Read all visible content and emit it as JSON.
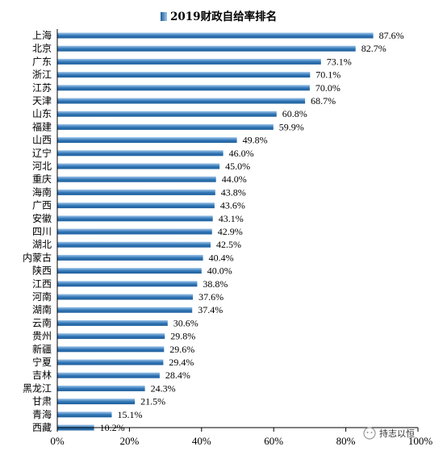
{
  "chart_data": {
    "type": "bar",
    "orientation": "horizontal",
    "title": "2019财政自给率排名",
    "categories": [
      "上海",
      "北京",
      "广东",
      "浙江",
      "江苏",
      "天津",
      "山东",
      "福建",
      "山西",
      "辽宁",
      "河北",
      "重庆",
      "海南",
      "广西",
      "安徽",
      "四川",
      "湖北",
      "内蒙古",
      "陕西",
      "江西",
      "河南",
      "湖南",
      "云南",
      "贵州",
      "新疆",
      "宁夏",
      "吉林",
      "黑龙江",
      "甘肃",
      "青海",
      "西藏"
    ],
    "values": [
      87.6,
      82.7,
      73.1,
      70.1,
      70.0,
      68.7,
      60.8,
      59.9,
      49.8,
      46.0,
      45.0,
      44.0,
      43.8,
      43.6,
      43.1,
      42.9,
      42.5,
      40.4,
      40.0,
      38.8,
      37.6,
      37.4,
      30.6,
      29.8,
      29.6,
      29.4,
      28.4,
      24.3,
      21.5,
      15.1,
      10.2
    ],
    "value_labels": [
      "87.6%",
      "82.7%",
      "73.1%",
      "70.1%",
      "70.0%",
      "68.7%",
      "60.8%",
      "59.9%",
      "49.8%",
      "46.0%",
      "45.0%",
      "44.0%",
      "43.8%",
      "43.6%",
      "43.1%",
      "42.9%",
      "42.5%",
      "40.4%",
      "40.0%",
      "38.8%",
      "37.6%",
      "37.4%",
      "30.6%",
      "29.8%",
      "29.6%",
      "29.4%",
      "28.4%",
      "24.3%",
      "21.5%",
      "15.1%",
      "10.2%"
    ],
    "xlim": [
      0,
      100
    ],
    "ticks": [
      0,
      20,
      40,
      60,
      80,
      100
    ],
    "tick_labels": [
      "0%",
      "20%",
      "40%",
      "60%",
      "80%",
      "100%"
    ],
    "grid": false,
    "bar_color_dark": "#1f5f9b",
    "bar_color_light": "#9fc6ea"
  },
  "watermark": {
    "text": "持志以恒"
  }
}
